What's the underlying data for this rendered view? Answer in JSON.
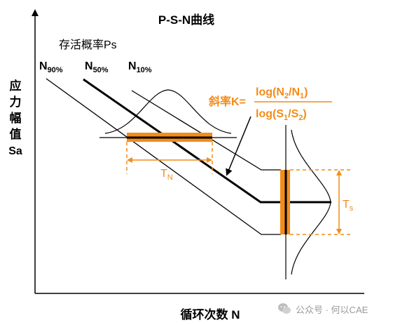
{
  "title": "P-S-N曲线",
  "y_axis_label": [
    "应",
    "力",
    "幅",
    "值",
    "Sa"
  ],
  "x_axis_label": "循环次数 N",
  "survival_prob_label": "存活概率Ps",
  "curves": [
    {
      "main": "N",
      "sub": "90%"
    },
    {
      "main": "N",
      "sub": "50%"
    },
    {
      "main": "N",
      "sub": "10%"
    }
  ],
  "slope": {
    "label": "斜率K=",
    "num_main": "log(N",
    "num_sub1": "2",
    "num_mid": "/N",
    "num_sub2": "1",
    "num_end": ")",
    "den_main": "log(S",
    "den_sub1": "1",
    "den_mid": "/S",
    "den_sub2": "2",
    "den_end": ")"
  },
  "tn": {
    "main": "T",
    "sub": "N"
  },
  "ts": {
    "main": "T",
    "sub": "s"
  },
  "watermark": "公众号 · 何以CAE",
  "colors": {
    "accent": "#f28c1a",
    "line": "#000000",
    "watermark": "#9a9a9a"
  }
}
